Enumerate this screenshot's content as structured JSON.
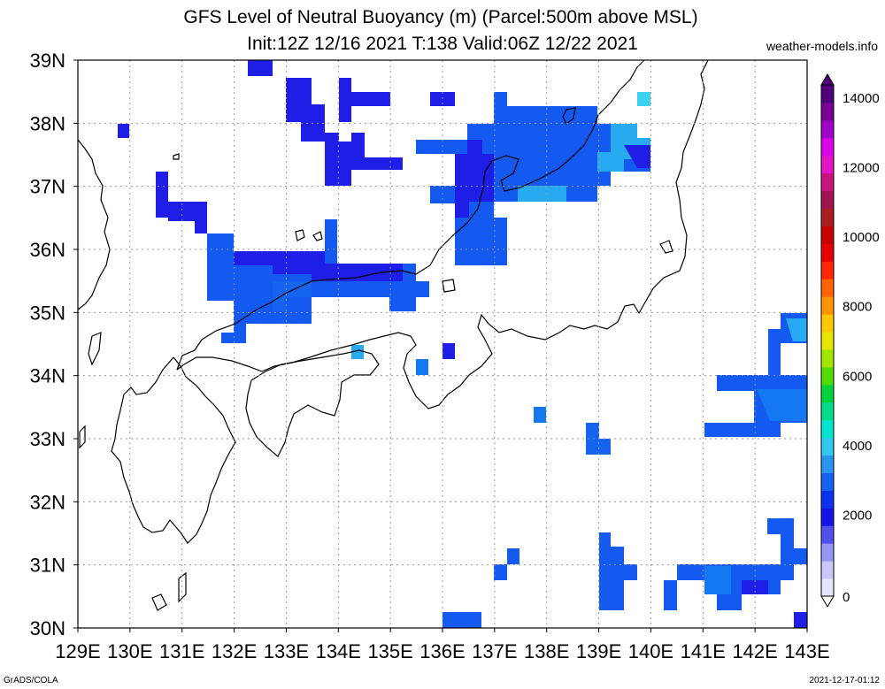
{
  "title": {
    "line1": "GFS Level of Neutral Buoyancy (m) (Parcel:500m above MSL)",
    "line2": "Init:12Z 12/16 2021 T:138 Valid:06Z 12/22 2021"
  },
  "site": "weather-models.info",
  "footer": {
    "left": "GrADS/COLA",
    "right": "2021-12-17-01:12"
  },
  "axes": {
    "lon_labels": [
      "129E",
      "130E",
      "131E",
      "132E",
      "133E",
      "134E",
      "135E",
      "136E",
      "137E",
      "138E",
      "139E",
      "140E",
      "141E",
      "142E",
      "143E"
    ],
    "lat_labels": [
      "30N",
      "31N",
      "32N",
      "33N",
      "34N",
      "35N",
      "36N",
      "37N",
      "38N",
      "39N"
    ],
    "lon_range": [
      129,
      143
    ],
    "lat_range": [
      30,
      39
    ]
  },
  "colorbar": {
    "labels": [
      "0",
      "2000",
      "4000",
      "6000",
      "8000",
      "10000",
      "12000",
      "14000"
    ],
    "colors": [
      "#e6e6ff",
      "#c8c8ff",
      "#9696f5",
      "#5050eb",
      "#1414e6",
      "#0a32f0",
      "#1464f0",
      "#2896f0",
      "#32c8f0",
      "#00e6d2",
      "#00dc8c",
      "#00d23c",
      "#50dc00",
      "#a0e600",
      "#e6e600",
      "#ffc800",
      "#ff9600",
      "#ff6400",
      "#ff2800",
      "#e60000",
      "#c80000",
      "#aa1e1e",
      "#a01450",
      "#c8147d",
      "#e614c8",
      "#dc00e6",
      "#a000c8",
      "#780096",
      "#500078"
    ]
  },
  "field_colors": {
    "c1": "#1e1ee6",
    "c2": "#145af0",
    "c3": "#1478f0",
    "c4": "#28aaf0",
    "c5": "#3cd2f0",
    "c6": "#46e6f5"
  }
}
